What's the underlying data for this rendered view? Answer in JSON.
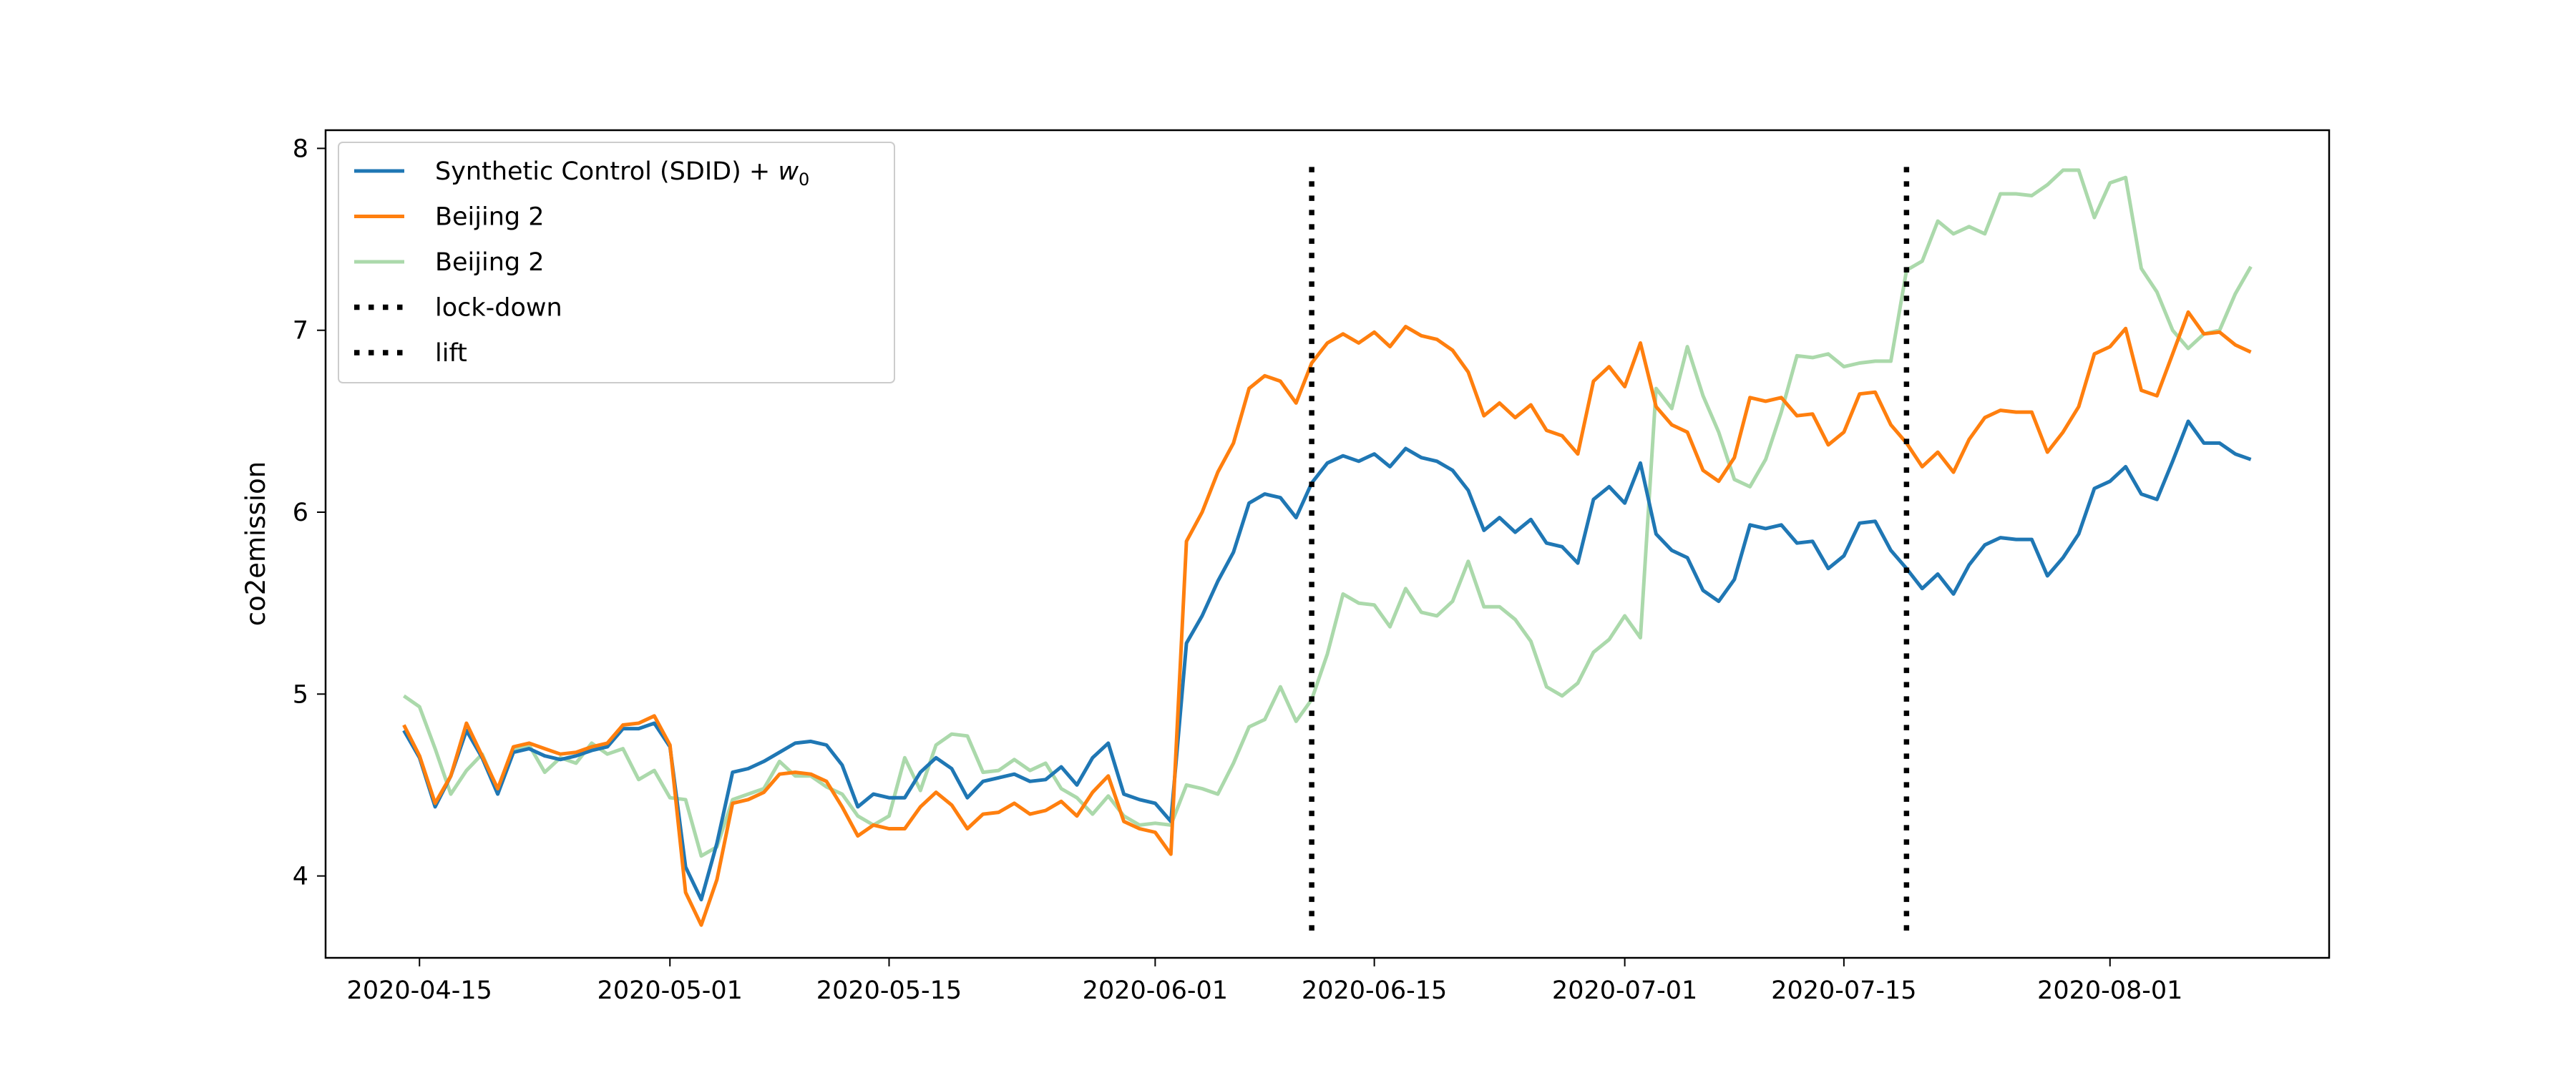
{
  "chart_data": {
    "type": "line",
    "xlabel": "",
    "ylabel": "co2emission",
    "xlim": [
      "2020-04-09",
      "2020-08-15"
    ],
    "ylim": [
      3.55,
      8.1
    ],
    "xticks": [
      "2020-04-15",
      "2020-05-01",
      "2020-05-15",
      "2020-06-01",
      "2020-06-15",
      "2020-07-01",
      "2020-07-15",
      "2020-08-01"
    ],
    "yticks": [
      4,
      5,
      6,
      7,
      8
    ],
    "grid": false,
    "legend_position": "top-left",
    "x_start": "2020-04-14",
    "series": [
      {
        "name": "Synthetic Control (SDID) + ",
        "name_math": "w",
        "name_sub": "0",
        "color": "#1f77b4",
        "opacity": 1,
        "values": [
          4.8,
          4.65,
          4.38,
          4.55,
          4.8,
          4.65,
          4.45,
          4.68,
          4.7,
          4.66,
          4.64,
          4.66,
          4.69,
          4.71,
          4.81,
          4.81,
          4.84,
          4.71,
          4.05,
          3.87,
          4.18,
          4.57,
          4.59,
          4.63,
          4.68,
          4.73,
          4.74,
          4.72,
          4.61,
          4.38,
          4.45,
          4.43,
          4.43,
          4.57,
          4.65,
          4.59,
          4.43,
          4.52,
          4.54,
          4.56,
          4.52,
          4.53,
          4.6,
          4.5,
          4.65,
          4.73,
          4.45,
          4.42,
          4.4,
          4.3,
          5.28,
          5.43,
          5.62,
          5.78,
          6.05,
          6.1,
          6.08,
          5.97,
          6.16,
          6.27,
          6.31,
          6.28,
          6.32,
          6.25,
          6.35,
          6.3,
          6.28,
          6.23,
          6.12,
          5.9,
          5.97,
          5.89,
          5.96,
          5.83,
          5.81,
          5.72,
          6.07,
          6.14,
          6.05,
          6.27,
          5.88,
          5.79,
          5.75,
          5.57,
          5.51,
          5.63,
          5.93,
          5.91,
          5.93,
          5.83,
          5.84,
          5.69,
          5.76,
          5.94,
          5.95,
          5.79,
          5.69,
          5.58,
          5.66,
          5.55,
          5.71,
          5.82,
          5.86,
          5.85,
          5.85,
          5.65,
          5.75,
          5.88,
          6.13,
          6.17,
          6.25,
          6.1,
          6.07,
          6.28,
          6.5,
          6.38,
          6.38,
          6.32,
          6.29
        ]
      },
      {
        "name": "Beijing 2",
        "color": "#ff7f0e",
        "opacity": 1,
        "values": [
          4.83,
          4.66,
          4.4,
          4.55,
          4.84,
          4.66,
          4.48,
          4.71,
          4.73,
          4.7,
          4.67,
          4.68,
          4.71,
          4.73,
          4.83,
          4.84,
          4.88,
          4.72,
          3.91,
          3.73,
          3.98,
          4.4,
          4.42,
          4.46,
          4.56,
          4.57,
          4.56,
          4.52,
          4.38,
          4.22,
          4.28,
          4.26,
          4.26,
          4.38,
          4.46,
          4.39,
          4.26,
          4.34,
          4.35,
          4.4,
          4.34,
          4.36,
          4.41,
          4.33,
          4.46,
          4.55,
          4.3,
          4.26,
          4.24,
          4.12,
          5.84,
          6.0,
          6.22,
          6.38,
          6.68,
          6.75,
          6.72,
          6.6,
          6.82,
          6.93,
          6.98,
          6.93,
          6.99,
          6.91,
          7.02,
          6.97,
          6.95,
          6.89,
          6.77,
          6.53,
          6.6,
          6.52,
          6.59,
          6.45,
          6.42,
          6.32,
          6.72,
          6.8,
          6.69,
          6.93,
          6.58,
          6.48,
          6.44,
          6.23,
          6.17,
          6.3,
          6.63,
          6.61,
          6.63,
          6.53,
          6.54,
          6.37,
          6.44,
          6.65,
          6.66,
          6.48,
          6.38,
          6.25,
          6.33,
          6.22,
          6.4,
          6.52,
          6.56,
          6.55,
          6.55,
          6.33,
          6.44,
          6.58,
          6.87,
          6.91,
          7.01,
          6.67,
          6.64,
          6.87,
          7.1,
          6.98,
          6.99,
          6.92,
          6.88
        ]
      },
      {
        "name": "Beijing 2",
        "color": "#2ca02c",
        "opacity": 0.4,
        "values": [
          4.99,
          4.93,
          4.7,
          4.45,
          4.58,
          4.67,
          4.47,
          4.7,
          4.72,
          4.57,
          4.65,
          4.62,
          4.73,
          4.67,
          4.7,
          4.53,
          4.58,
          4.43,
          4.42,
          4.11,
          4.16,
          4.42,
          4.45,
          4.48,
          4.63,
          4.55,
          4.55,
          4.49,
          4.45,
          4.33,
          4.28,
          4.33,
          4.65,
          4.47,
          4.72,
          4.78,
          4.77,
          4.57,
          4.58,
          4.64,
          4.58,
          4.62,
          4.48,
          4.43,
          4.34,
          4.44,
          4.33,
          4.28,
          4.29,
          4.28,
          4.5,
          4.48,
          4.45,
          4.62,
          4.82,
          4.86,
          5.04,
          4.85,
          4.97,
          5.22,
          5.55,
          5.5,
          5.49,
          5.37,
          5.58,
          5.45,
          5.43,
          5.51,
          5.73,
          5.48,
          5.48,
          5.41,
          5.29,
          5.04,
          4.99,
          5.06,
          5.23,
          5.3,
          5.43,
          5.31,
          6.68,
          6.57,
          6.91,
          6.64,
          6.44,
          6.18,
          6.14,
          6.29,
          6.55,
          6.86,
          6.85,
          6.87,
          6.8,
          6.82,
          6.83,
          6.83,
          7.33,
          7.38,
          7.6,
          7.53,
          7.57,
          7.53,
          7.75,
          7.75,
          7.74,
          7.8,
          7.88,
          7.88,
          7.62,
          7.81,
          7.84,
          7.34,
          7.21,
          7.0,
          6.9,
          6.98,
          7.0,
          7.2,
          7.35
        ]
      }
    ],
    "vlines": [
      {
        "name": "lock-down",
        "x": "2020-06-11",
        "ymin": 3.7,
        "ymax": 7.9,
        "color": "#000000",
        "style": "dotted"
      },
      {
        "name": "lift",
        "x": "2020-07-19",
        "ymin": 3.7,
        "ymax": 7.9,
        "color": "#000000",
        "style": "dotted"
      }
    ]
  }
}
